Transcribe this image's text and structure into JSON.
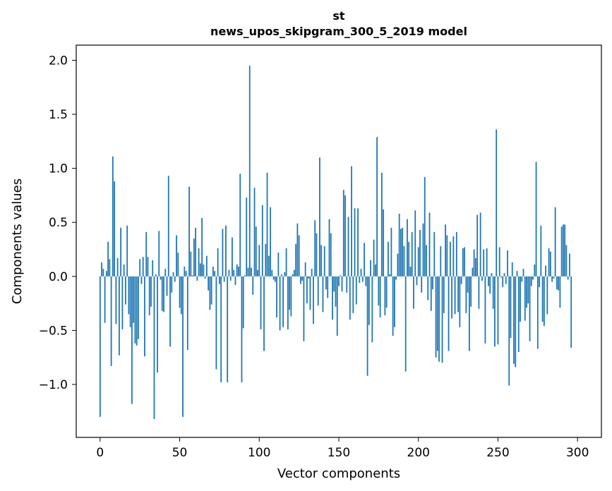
{
  "chart_data": {
    "type": "bar",
    "title": "st",
    "subtitle": "news_upos_skipgram_300_5_2019 model",
    "xlabel": "Vector components",
    "ylabel": "Components values",
    "xlim": [
      -15,
      315
    ],
    "ylim": [
      -1.49,
      2.14
    ],
    "xticks": [
      0,
      50,
      100,
      150,
      200,
      250,
      300
    ],
    "xtick_labels": [
      "0",
      "50",
      "100",
      "150",
      "200",
      "250",
      "300"
    ],
    "yticks": [
      -1.0,
      -0.5,
      0.0,
      0.5,
      1.0,
      1.5,
      2.0
    ],
    "ytick_labels": [
      "−1.0",
      "−0.5",
      "0.0",
      "0.5",
      "1.0",
      "1.5",
      "2.0"
    ],
    "bar_color": "#1f77b4",
    "grid": false,
    "series": [
      {
        "name": "st",
        "values": [
          -1.3,
          0.13,
          0.07,
          -0.43,
          0.05,
          0.32,
          0.16,
          -0.83,
          1.11,
          0.88,
          -0.44,
          0.17,
          -0.73,
          0.45,
          -0.49,
          0.11,
          -0.26,
          0.47,
          -0.35,
          -0.47,
          -1.18,
          -0.43,
          -0.62,
          -0.64,
          -0.58,
          0.16,
          -0.07,
          0.18,
          -0.74,
          0.41,
          0.18,
          -0.36,
          -0.28,
          0.15,
          -1.32,
          0.02,
          -0.89,
          0.42,
          -0.03,
          -0.32,
          -0.33,
          0.07,
          -0.18,
          0.93,
          -0.65,
          -0.15,
          0.04,
          -0.05,
          0.38,
          0.22,
          -0.29,
          -0.35,
          -1.3,
          0.09,
          0.05,
          -0.68,
          0.83,
          0.23,
          0.01,
          0.35,
          0.45,
          -0.04,
          0.26,
          0.12,
          0.54,
          0.11,
          -0.02,
          0.19,
          -0.13,
          -0.31,
          -0.26,
          0.09,
          0.05,
          -0.86,
          0.26,
          -0.07,
          -0.98,
          0.44,
          -0.05,
          0.47,
          -0.98,
          0.06,
          -0.04,
          0.36,
          0.06,
          -0.08,
          0.11,
          0.09,
          0.95,
          -0.98,
          -0.48,
          0.01,
          0.73,
          0.08,
          1.95,
          0.08,
          -0.17,
          0.82,
          0.46,
          0.06,
          0.29,
          -0.49,
          0.66,
          -0.69,
          0.3,
          0.96,
          0.19,
          0.64,
          0.06,
          -0.03,
          -0.05,
          -0.38,
          0.22,
          -0.5,
          0.02,
          -0.47,
          0.04,
          0.26,
          -0.49,
          -0.31,
          -0.37,
          0.02,
          0.06,
          0.3,
          0.49,
          0.38,
          -0.07,
          -0.04,
          -0.6,
          0.13,
          -0.25,
          -0.02,
          -0.31,
          0.07,
          -0.44,
          0.52,
          0.4,
          -0.27,
          1.1,
          0.29,
          -0.33,
          0.28,
          -0.12,
          -0.2,
          0.53,
          0.4,
          -0.4,
          -0.14,
          -0.28,
          -0.55,
          -0.09,
          0.01,
          -0.14,
          0.8,
          0.75,
          -0.15,
          0.55,
          -0.4,
          1.02,
          -0.34,
          0.63,
          -0.26,
          0.63,
          -0.06,
          0.07,
          -0.05,
          0.31,
          -0.09,
          -0.92,
          -0.45,
          0.15,
          -0.61,
          0.34,
          0.11,
          1.29,
          -0.27,
          -0.38,
          0.96,
          0.62,
          -0.36,
          -0.29,
          0.32,
          0.02,
          0.45,
          -0.55,
          -0.47,
          -0.03,
          0.21,
          0.58,
          0.44,
          0.45,
          0.28,
          -0.88,
          0.53,
          0.32,
          0.09,
          0.41,
          -0.3,
          0.61,
          -0.08,
          0.27,
          0.43,
          -0.15,
          0.49,
          0.92,
          0.29,
          -0.22,
          0.59,
          -0.32,
          -0.12,
          0.41,
          -0.75,
          -0.69,
          -0.79,
          0.28,
          -0.8,
          -0.34,
          0.48,
          0.38,
          -0.69,
          0.32,
          -0.39,
          0.37,
          -0.35,
          0.41,
          -0.33,
          -0.47,
          -0.07,
          0.26,
          0.27,
          -0.34,
          -0.15,
          -0.69,
          -0.28,
          0.08,
          0.25,
          0.17,
          0.57,
          -0.3,
          0.59,
          -0.04,
          0.25,
          -0.62,
          0.26,
          -0.09,
          -0.16,
          0.03,
          -0.3,
          -0.65,
          1.36,
          -0.63,
          0.27,
          -0.01,
          -0.1,
          0.03,
          -0.07,
          0.24,
          -1.01,
          -0.57,
          0.13,
          -0.81,
          -0.84,
          0.05,
          -0.7,
          -0.42,
          -0.05,
          0.07,
          -0.41,
          -0.29,
          -0.25,
          -0.6,
          -0.09,
          -0.03,
          0.11,
          1.06,
          -0.67,
          -0.1,
          0.47,
          -0.42,
          -0.46,
          0.1,
          -0.35,
          0.26,
          0.23,
          -0.05,
          -0.02,
          0.64,
          -0.12,
          -0.13,
          -0.29,
          0.46,
          0.48,
          0.48,
          0.29,
          -0.03,
          0.21,
          -0.66
        ]
      }
    ]
  }
}
